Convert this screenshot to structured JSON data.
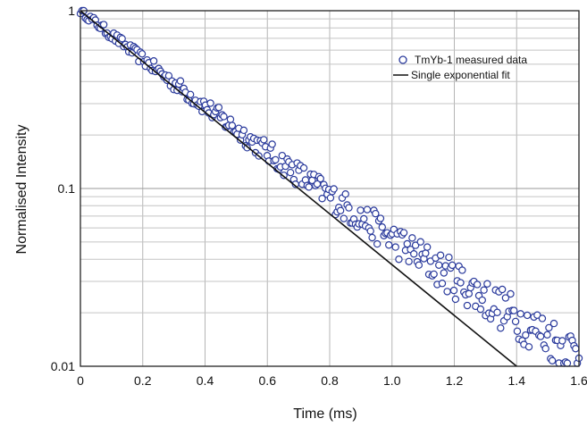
{
  "chart_data": {
    "type": "scatter",
    "title": "",
    "xlabel": "Time (ms)",
    "ylabel": "Normalised Intensity",
    "xlim": [
      0,
      1.6
    ],
    "ylim": [
      0.01,
      1
    ],
    "y_scale": "log",
    "grid": true,
    "legend_position": "top-right",
    "x_ticks": [
      "0",
      "0.2",
      "0.4",
      "0.6",
      "0.8",
      "1.0",
      "1.2",
      "1.4",
      "1.6"
    ],
    "y_ticks": [
      "0.01",
      "0.1",
      "1"
    ],
    "series": [
      {
        "name": "TmYb-1 measured data",
        "kind": "scatter",
        "marker": "open-circle",
        "color": "#2a3a9c",
        "decay_model": {
          "form": "biexponential",
          "amplitude_1": 0.82,
          "lifetime_1_ms": 0.29,
          "amplitude_2": 0.18,
          "lifetime_2_ms": 0.52
        },
        "x_range": [
          0,
          1.6
        ],
        "point_count": 300
      },
      {
        "name": "Single exponential fit",
        "kind": "line",
        "color": "#111111",
        "x": [
          0,
          1.4
        ],
        "y": [
          1,
          0.01
        ]
      }
    ]
  }
}
